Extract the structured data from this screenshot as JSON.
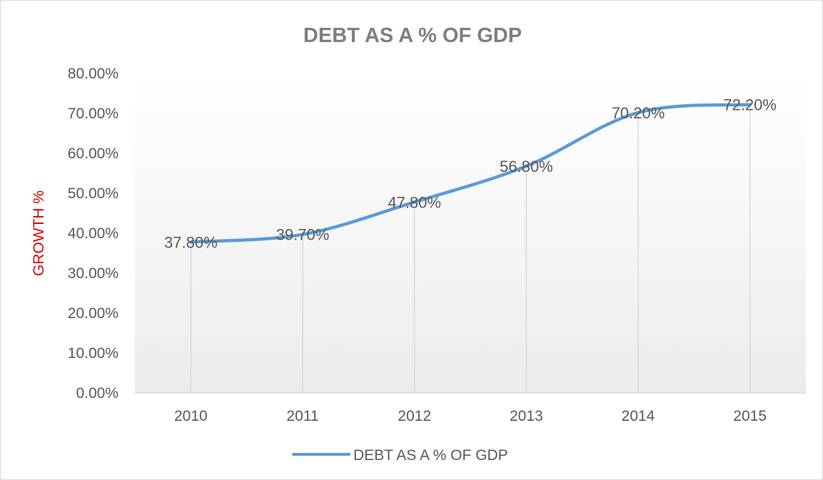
{
  "chart_data": {
    "type": "line",
    "title": "DEBT AS A % OF GDP",
    "ylabel": "GROWTH %",
    "xlabel": "",
    "categories": [
      "2010",
      "2011",
      "2012",
      "2013",
      "2014",
      "2015"
    ],
    "series": [
      {
        "name": "DEBT AS A % OF GDP",
        "values": [
          37.8,
          39.7,
          47.8,
          56.8,
          70.2,
          72.2
        ],
        "labels": [
          "37.80%",
          "39.70%",
          "47.80%",
          "56.80%",
          "70.20%",
          "72.20%"
        ],
        "color": "#5b9bd5"
      }
    ],
    "ylim": [
      0,
      80
    ],
    "yticks": [
      {
        "value": 0,
        "label": "0.00%"
      },
      {
        "value": 10,
        "label": "10.00%"
      },
      {
        "value": 20,
        "label": "20.00%"
      },
      {
        "value": 30,
        "label": "30.00%"
      },
      {
        "value": 40,
        "label": "40.00%"
      },
      {
        "value": 50,
        "label": "50.00%"
      },
      {
        "value": 60,
        "label": "60.00%"
      },
      {
        "value": 70,
        "label": "70.00%"
      },
      {
        "value": 80,
        "label": "80.00%"
      }
    ],
    "drop_lines": true,
    "legend": "bottom",
    "grid": false
  }
}
